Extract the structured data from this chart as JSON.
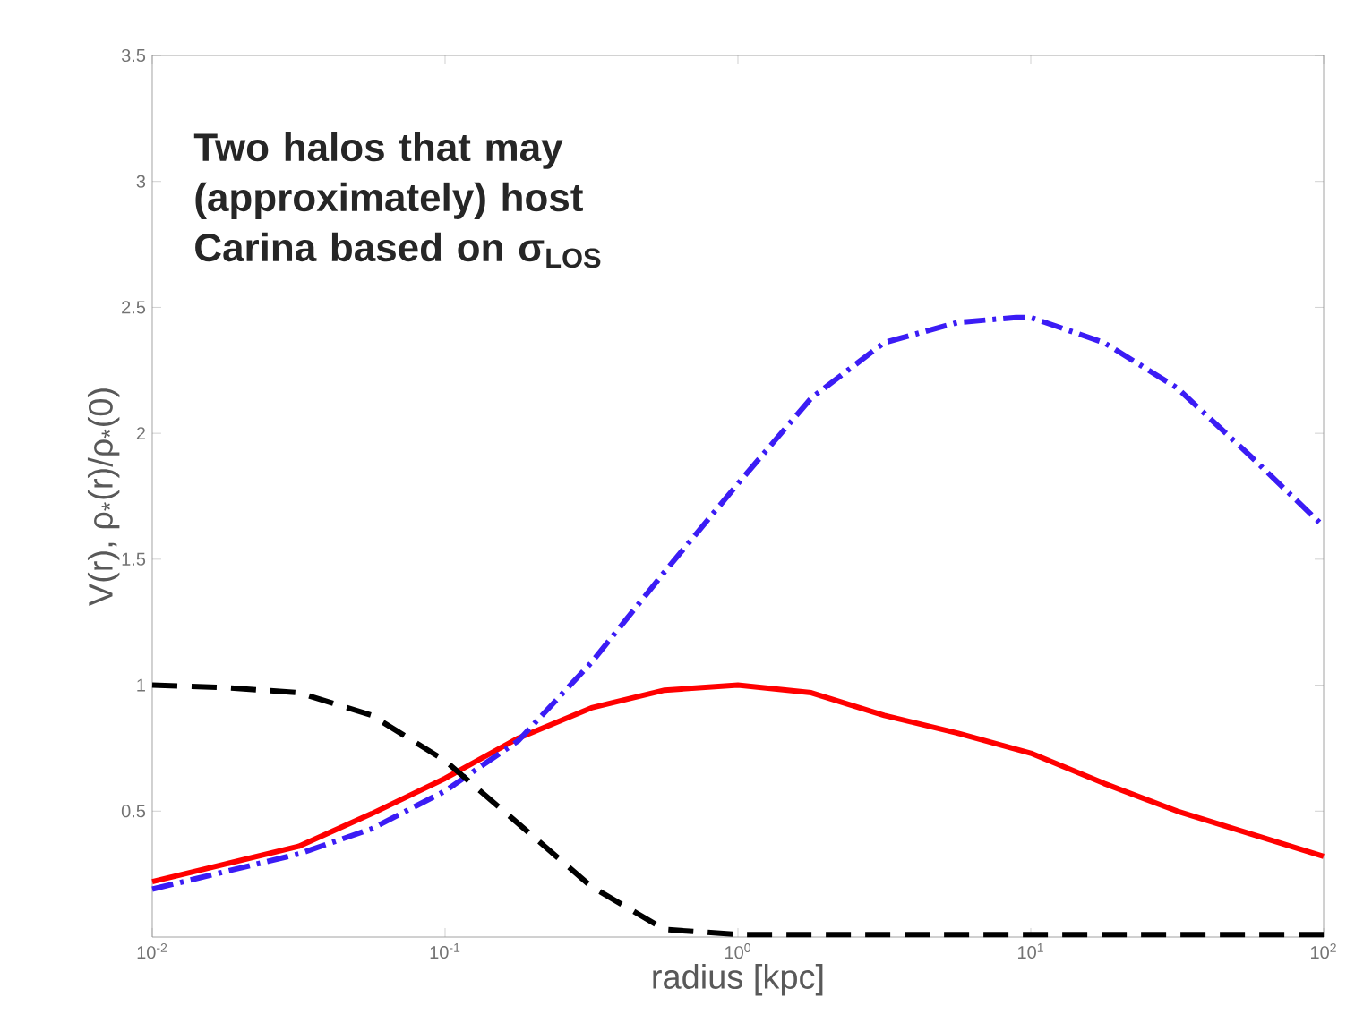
{
  "chart_data": {
    "type": "line",
    "xlabel": "radius [kpc]",
    "ylabel": "V(r),  ρ$_{*}$(r)/ρ$_{*}$(0)",
    "annotations": [
      "Two halos that may (approximately) host Carina based on σ$_{LOS}$"
    ],
    "log": "x",
    "xlim": [
      0.01,
      100
    ],
    "ylim": [
      0,
      3.5
    ],
    "xticks": [
      {
        "value": 0.01,
        "label": "10$^{-2}$"
      },
      {
        "value": 0.1,
        "label": "10$^{-1}$"
      },
      {
        "value": 1,
        "label": "10$^{0}$"
      },
      {
        "value": 10,
        "label": "10$^{1}$"
      },
      {
        "value": 100,
        "label": "10$^{2}$"
      }
    ],
    "yticks": [
      0.5,
      1,
      1.5,
      2,
      2.5,
      3,
      3.5
    ],
    "series": [
      {
        "color": "#ff0000",
        "line_style": "solid",
        "x": [
          0.01,
          0.0178,
          0.0316,
          0.0562,
          0.1,
          0.178,
          0.316,
          0.562,
          1,
          1.78,
          3.16,
          5.62,
          10,
          17.8,
          31.6,
          56.2,
          100
        ],
        "values": [
          0.22,
          0.29,
          0.36,
          0.49,
          0.63,
          0.79,
          0.91,
          0.98,
          1.0,
          0.97,
          0.88,
          0.81,
          0.73,
          0.61,
          0.5,
          0.41,
          0.32
        ]
      },
      {
        "color": "#3b1cf5",
        "line_style": "dashdot",
        "x": [
          0.01,
          0.0178,
          0.0316,
          0.0562,
          0.1,
          0.178,
          0.316,
          0.562,
          1,
          1.78,
          3.16,
          5.62,
          8.91,
          10,
          17.8,
          31.6,
          56.2,
          100
        ],
        "values": [
          0.19,
          0.26,
          0.33,
          0.43,
          0.58,
          0.78,
          1.09,
          1.45,
          1.8,
          2.14,
          2.36,
          2.44,
          2.46,
          2.46,
          2.36,
          2.18,
          1.91,
          1.63
        ]
      },
      {
        "color": "#000000",
        "line_style": "dashed",
        "x": [
          0.01,
          0.0178,
          0.0316,
          0.0562,
          0.1,
          0.178,
          0.316,
          0.562,
          1,
          10,
          100
        ],
        "values": [
          1.0,
          0.99,
          0.97,
          0.88,
          0.7,
          0.45,
          0.2,
          0.03,
          0.01,
          0.01,
          0.01
        ]
      }
    ]
  }
}
